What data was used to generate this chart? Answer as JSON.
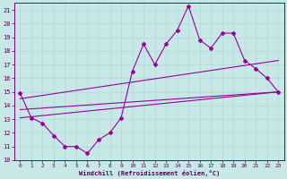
{
  "xlabel": "Windchill (Refroidissement éolien,°C)",
  "bg_color": "#c8e8e8",
  "line_color": "#990099",
  "xlim": [
    -0.5,
    23.5
  ],
  "ylim": [
    10,
    21.5
  ],
  "yticks": [
    10,
    11,
    12,
    13,
    14,
    15,
    16,
    17,
    18,
    19,
    20,
    21
  ],
  "xticks": [
    0,
    1,
    2,
    3,
    4,
    5,
    6,
    7,
    8,
    9,
    10,
    11,
    12,
    13,
    14,
    15,
    16,
    17,
    18,
    19,
    20,
    21,
    22,
    23
  ],
  "series1_x": [
    0,
    1,
    2,
    3,
    4,
    5,
    6,
    7,
    8,
    9,
    10,
    11,
    12,
    13,
    14,
    15,
    16,
    17,
    18,
    19,
    20,
    21,
    22,
    23
  ],
  "series1_y": [
    14.9,
    13.1,
    12.7,
    11.8,
    11.0,
    11.0,
    10.5,
    11.5,
    12.0,
    13.1,
    16.5,
    18.5,
    17.0,
    18.5,
    19.5,
    21.3,
    18.8,
    18.2,
    19.3,
    19.3,
    17.3,
    16.7,
    16.0,
    15.0
  ],
  "trend1_x": [
    0,
    23
  ],
  "trend1_y": [
    13.1,
    15.0
  ],
  "trend2_x": [
    0,
    23
  ],
  "trend2_y": [
    14.5,
    17.3
  ],
  "trend3_x": [
    0,
    23
  ],
  "trend3_y": [
    13.7,
    15.0
  ]
}
